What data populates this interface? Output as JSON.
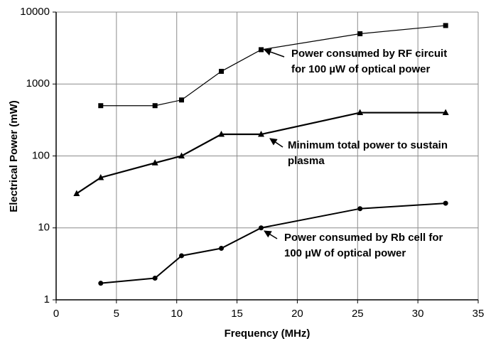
{
  "chart_data": {
    "type": "line",
    "xlabel": "Frequency (MHz)",
    "ylabel": "Electrical Power (mW)",
    "xlim": [
      0,
      35
    ],
    "xticks": [
      0,
      5,
      10,
      15,
      20,
      25,
      30,
      35
    ],
    "ylim": [
      1,
      10000
    ],
    "yticks": [
      1,
      10,
      100,
      1000,
      10000
    ],
    "log_y": true,
    "grid": true,
    "series": [
      {
        "color": "#000000",
        "marker": "square",
        "x": [
          3.7,
          8.2,
          10.4,
          13.7,
          17,
          25.2,
          32.3
        ],
        "values": [
          500,
          500,
          600,
          1500,
          3000,
          5000,
          6500
        ]
      },
      {
        "color": "#000000",
        "marker": "triangle",
        "x": [
          1.7,
          3.7,
          8.2,
          10.4,
          13.7,
          17,
          25.2,
          32.3
        ],
        "values": [
          30,
          50,
          80,
          100,
          200,
          200,
          400,
          400
        ]
      },
      {
        "color": "#000000",
        "marker": "circle",
        "x": [
          3.7,
          8.2,
          10.4,
          13.7,
          17,
          25.2,
          32.3
        ],
        "values": [
          1.7,
          2.0,
          4.1,
          5.2,
          10,
          18.5,
          22
        ]
      }
    ],
    "annotations": [
      {
        "lines": [
          "Power consumed by RF circuit",
          "for 100 µW of optical power"
        ]
      },
      {
        "lines": [
          "Minimum total power to sustain",
          "plasma"
        ]
      },
      {
        "lines": [
          "Power consumed by Rb cell for",
          "100 µW of optical power"
        ]
      }
    ]
  }
}
